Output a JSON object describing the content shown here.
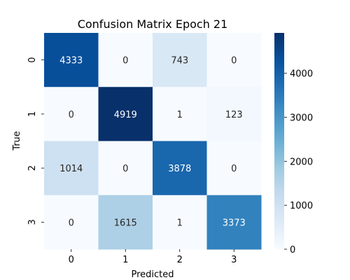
{
  "chart_data": {
    "type": "heatmap",
    "title": "Confusion Matrix Epoch 21",
    "xlabel": "Predicted",
    "ylabel": "True",
    "x_categories": [
      "0",
      "1",
      "2",
      "3"
    ],
    "y_categories": [
      "0",
      "1",
      "2",
      "3"
    ],
    "values": [
      [
        4333,
        0,
        743,
        0
      ],
      [
        0,
        4919,
        1,
        123
      ],
      [
        1014,
        0,
        3878,
        0
      ],
      [
        0,
        1615,
        1,
        3373
      ]
    ],
    "colormap": "Blues",
    "colorbar": {
      "range": [
        0,
        4919
      ],
      "ticks": [
        0,
        1000,
        2000,
        3000,
        4000
      ]
    },
    "colors": {
      "low": "#f7fbff",
      "high": "#08306b"
    }
  }
}
